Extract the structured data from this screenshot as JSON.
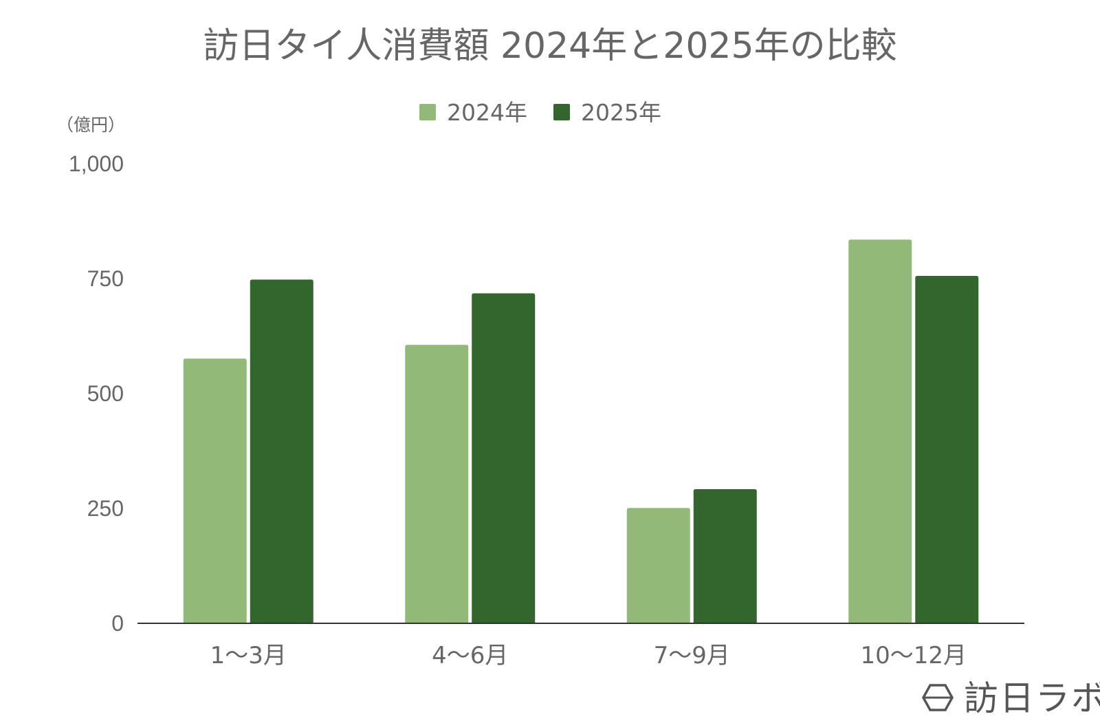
{
  "chart_data": {
    "type": "bar",
    "title": "訪日タイ人消費額 2024年と2025年の比較",
    "unit_label": "（億円）",
    "categories": [
      "1～3月",
      "4～6月",
      "7～9月",
      "10～12月"
    ],
    "series": [
      {
        "name": "2024年",
        "color": "#93b978",
        "values": [
          576,
          606,
          251,
          835
        ]
      },
      {
        "name": "2025年",
        "color": "#33662c",
        "values": [
          748,
          718,
          292,
          756
        ]
      }
    ],
    "ylim": [
      0,
      1000
    ],
    "yticks": [
      {
        "value": 0,
        "label": "0"
      },
      {
        "value": 250,
        "label": "250"
      },
      {
        "value": 500,
        "label": "500"
      },
      {
        "value": 750,
        "label": "750"
      },
      {
        "value": 1000,
        "label": "1,000"
      }
    ],
    "grid": false,
    "legend_position": "top-center"
  },
  "branding": {
    "text": "訪日ラボ",
    "icon": "hexagon-logo-icon"
  }
}
